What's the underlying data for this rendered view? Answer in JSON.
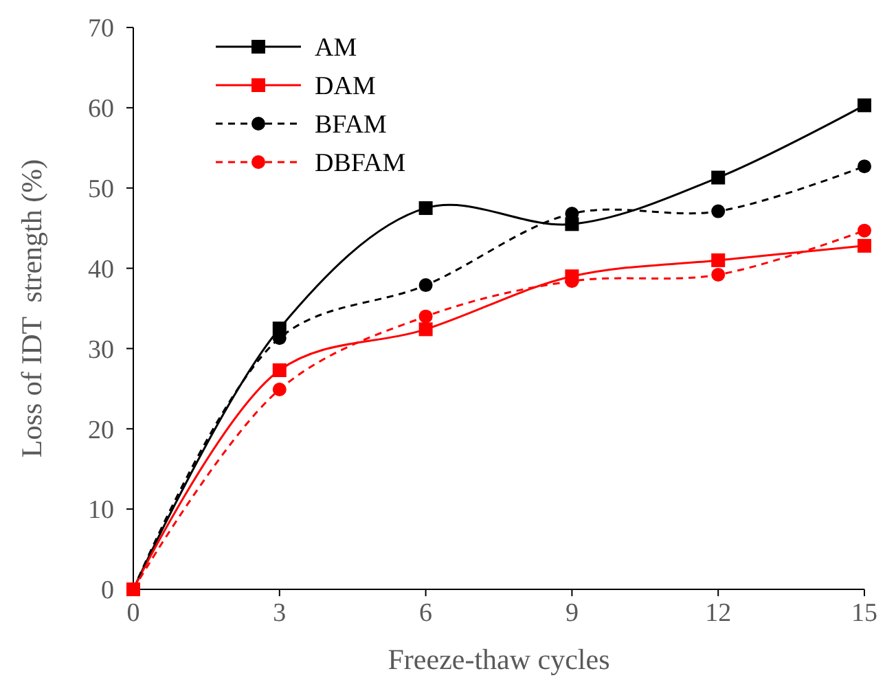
{
  "chart_data": {
    "type": "line",
    "xlabel": "Freeze-thaw cycles",
    "ylabel": "Loss of IDT  strength (%)",
    "x": [
      0,
      3,
      6,
      9,
      12,
      15
    ],
    "xlim": [
      0,
      15
    ],
    "xticks": [
      0,
      3,
      6,
      9,
      12,
      15
    ],
    "ylim": [
      0,
      70
    ],
    "yticks": [
      0,
      10,
      20,
      30,
      40,
      50,
      60,
      70
    ],
    "grid": false,
    "legend": "top left",
    "series": [
      {
        "name": "AM",
        "color": "#000000",
        "marker": "square",
        "line_style": "solid",
        "values": [
          0,
          32.5,
          47.5,
          45.5,
          51.3,
          60.3
        ]
      },
      {
        "name": "DAM",
        "color": "#ff0000",
        "marker": "square",
        "line_style": "solid",
        "values": [
          0,
          27.3,
          32.4,
          39,
          41,
          42.8
        ]
      },
      {
        "name": "BFAM",
        "color": "#000000",
        "marker": "circle",
        "line_style": "dashed",
        "values": [
          0,
          31.3,
          37.9,
          46.8,
          47.1,
          52.7
        ]
      },
      {
        "name": "DBFAM",
        "color": "#ff0000",
        "marker": "circle",
        "line_style": "dashed",
        "values": [
          0,
          24.9,
          34,
          38.4,
          39.2,
          44.7
        ]
      }
    ]
  }
}
